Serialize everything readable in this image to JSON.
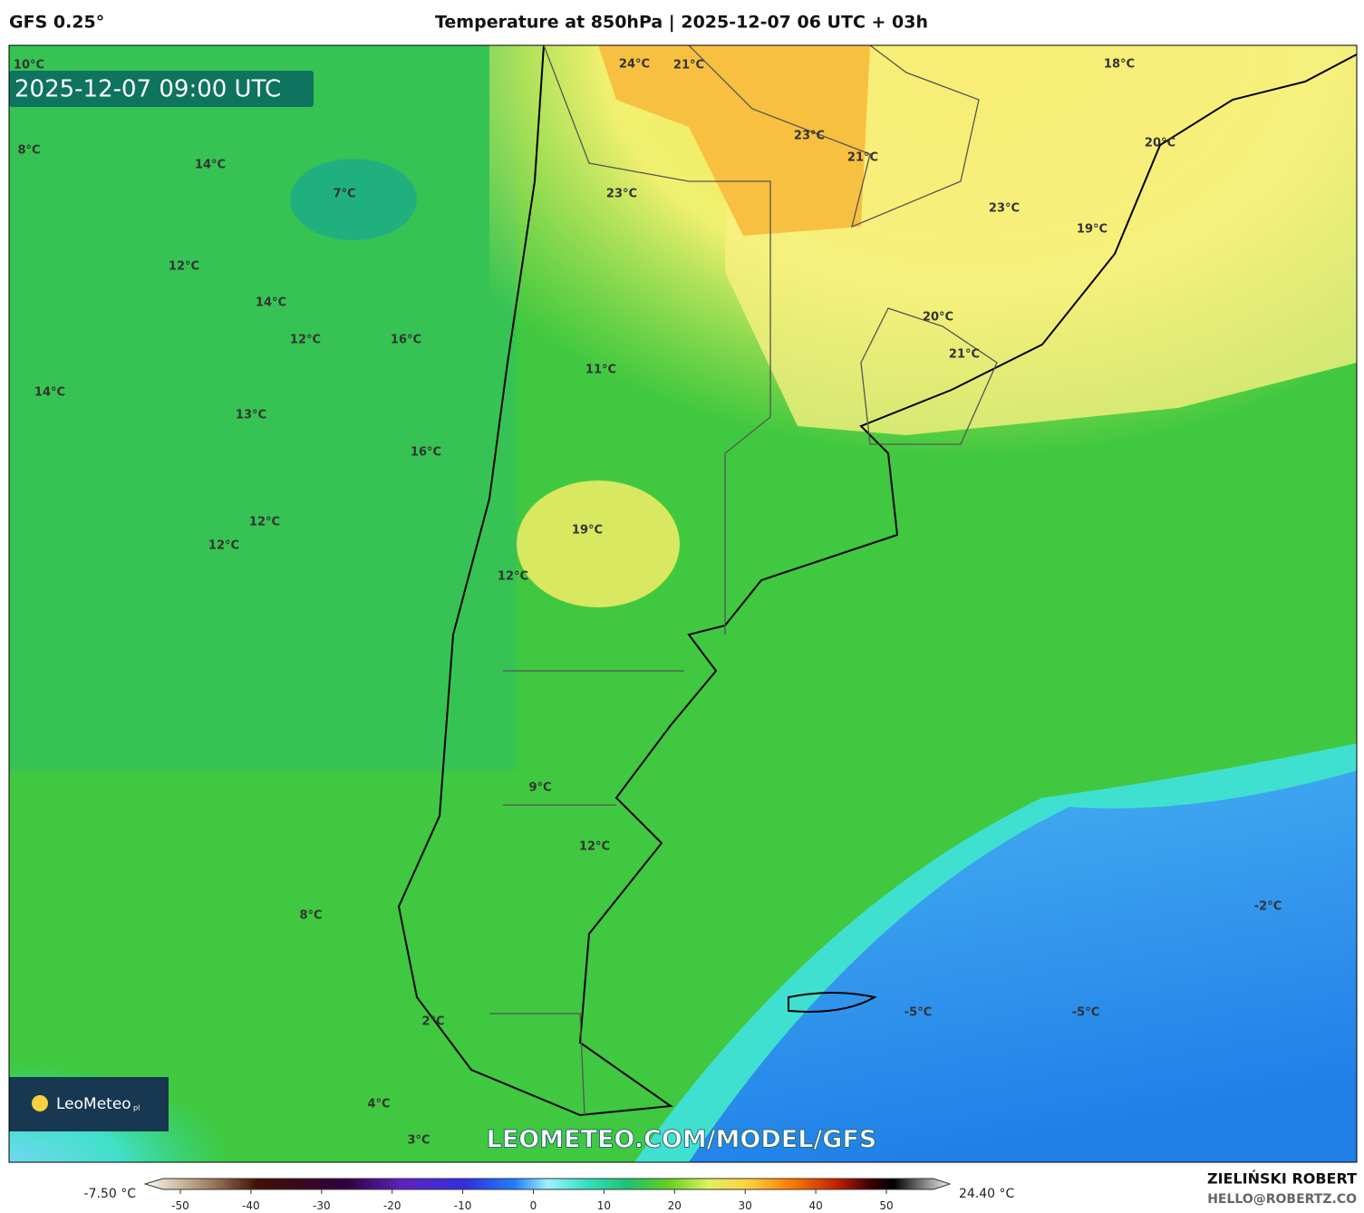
{
  "header": {
    "model": "GFS 0.25°",
    "title": "Temperature at 850hPa | 2025-12-07 06 UTC + 03h"
  },
  "map": {
    "timestamp": "2025-12-07 09:00 UTC",
    "labels": [
      "10°C",
      "8°C",
      "14°C",
      "7°C",
      "12°C",
      "14°C",
      "12°C",
      "16°C",
      "14°C",
      "13°C",
      "16°C",
      "12°C",
      "12°C",
      "11°C",
      "19°C",
      "12°C",
      "24°C",
      "21°C",
      "23°C",
      "21°C",
      "23°C",
      "18°C",
      "20°C",
      "23°C",
      "19°C",
      "20°C",
      "21°C",
      "9°C",
      "12°C",
      "8°C",
      "-2°C",
      "-5°C",
      "-5°C",
      "2°C",
      "4°C",
      "3°C"
    ],
    "logo": {
      "name": "LeoMeteo",
      "suffix": "pl"
    },
    "watermark": "LEOMETEO.COM/MODEL/GFS"
  },
  "colorbar": {
    "min_label": "-7.50 °C",
    "max_label": "24.40 °C",
    "ticks": [
      -50,
      -40,
      -30,
      -20,
      -10,
      0,
      10,
      20,
      30,
      40,
      50
    ]
  },
  "footer": {
    "author": "ZIELIŃSKI ROBERT",
    "contact": "HELLO@ROBERTZ.CO"
  }
}
